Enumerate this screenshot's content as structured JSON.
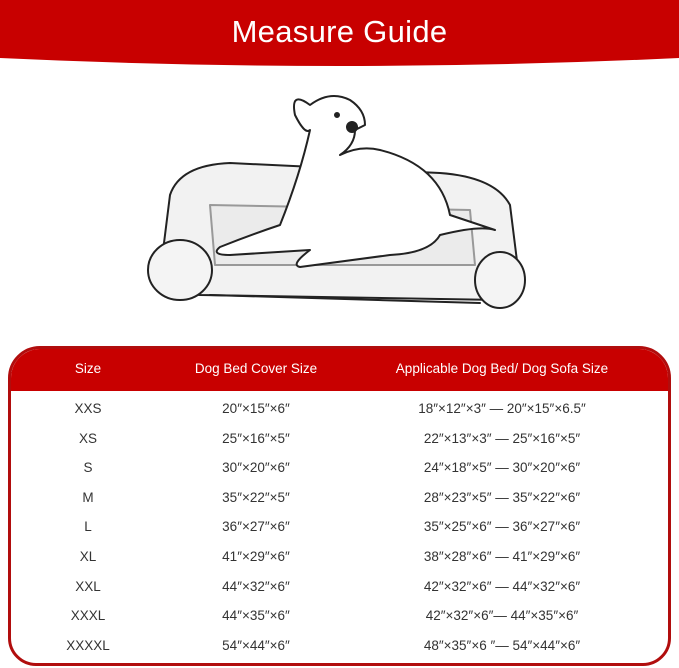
{
  "header": {
    "title": "Measure Guide"
  },
  "colors": {
    "brand_red": "#c80000",
    "border_red": "#b10d0d"
  },
  "illustration": {
    "icon": "dog-lying-on-bolster-bed-illustration"
  },
  "table": {
    "columns": [
      "Size",
      "Dog Bed Cover Size",
      "Applicable Dog Bed/ Dog Sofa Size"
    ],
    "rows": [
      {
        "size": "XXS",
        "cover": "20″×15″×6″",
        "applicable": "18″×12″×3″ — 20″×15″×6.5″"
      },
      {
        "size": "XS",
        "cover": "25″×16″×5″",
        "applicable": "22″×13″×3″ — 25″×16″×5″"
      },
      {
        "size": "S",
        "cover": "30″×20″×6″",
        "applicable": "24″×18″×5″ — 30″×20″×6″"
      },
      {
        "size": "M",
        "cover": "35″×22″×5″",
        "applicable": "28″×23″×5″ — 35″×22″×6″"
      },
      {
        "size": "L",
        "cover": "36″×27″×6″",
        "applicable": "35″×25″×6″ — 36″×27″×6″"
      },
      {
        "size": "XL",
        "cover": "41″×29″×6″",
        "applicable": "38″×28″×6″ — 41″×29″×6″"
      },
      {
        "size": "XXL",
        "cover": "44″×32″×6″",
        "applicable": "42″×32″×6″ — 44″×32″×6″"
      },
      {
        "size": "XXXL",
        "cover": "44″×35″×6″",
        "applicable": "42″×32″×6″— 44″×35″×6″"
      },
      {
        "size": "XXXXL",
        "cover": "54″×44″×6″",
        "applicable": "48″×35″×6 ″— 54″×44″×6″"
      }
    ]
  }
}
